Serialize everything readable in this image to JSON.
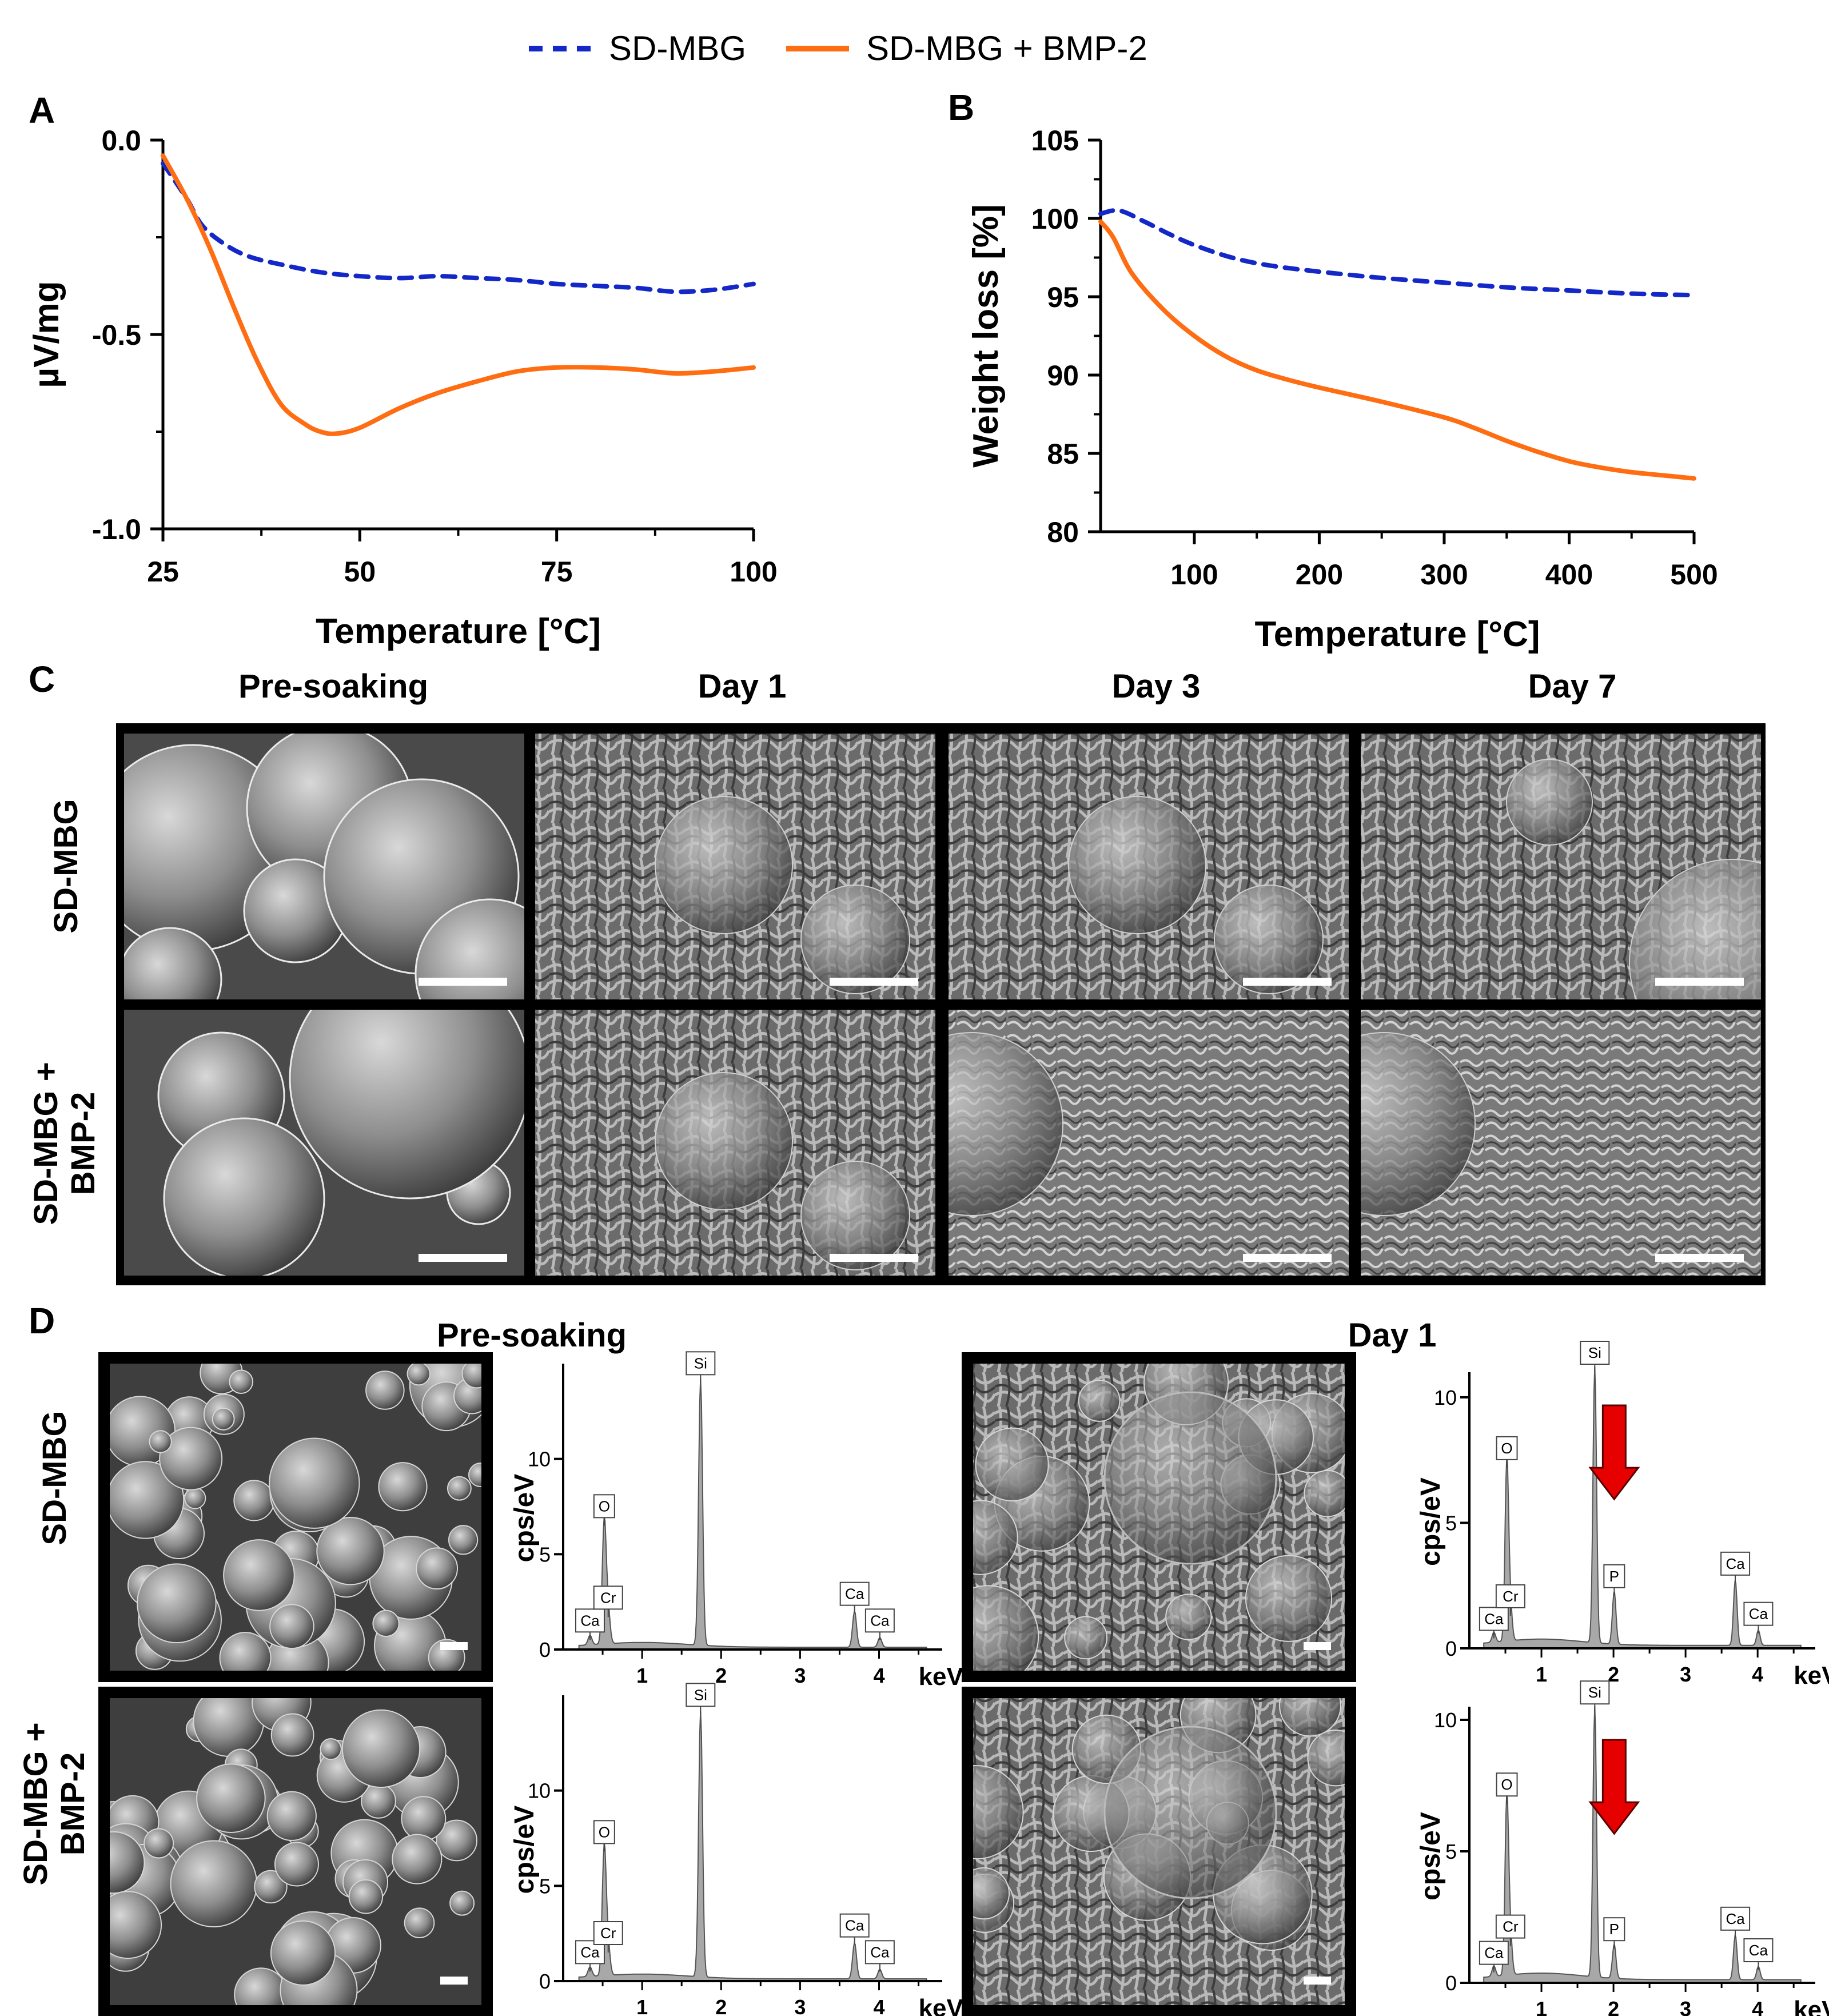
{
  "legend": {
    "series1": "SD-MBG",
    "series2": "SD-MBG + BMP-2"
  },
  "colors": {
    "series1": "#1428c8",
    "series2": "#ff6d12",
    "arrow": "#e60000",
    "spectrum": "#a8a8a8",
    "sem_frame": "#000000"
  },
  "panel_labels": {
    "a": "A",
    "b": "B",
    "c": "C",
    "d": "D"
  },
  "panel_c": {
    "columns": [
      "Pre-soaking",
      "Day 1",
      "Day 3",
      "Day 7"
    ],
    "rows": [
      {
        "label": "SD-MBG"
      },
      {
        "label_line1": "SD-MBG +",
        "label_line2": "BMP-2"
      }
    ]
  },
  "panel_d": {
    "groups": [
      "Pre-soaking",
      "Day 1"
    ],
    "rows": [
      {
        "label": "SD-MBG"
      },
      {
        "label_line1": "SD-MBG +",
        "label_line2": "BMP-2"
      }
    ]
  },
  "chart_data": [
    {
      "id": "A",
      "type": "line",
      "title": "",
      "xlabel": "Temperature [°C]",
      "ylabel": "µV/mg",
      "xlim": [
        25,
        100
      ],
      "ylim": [
        -1.0,
        0.0
      ],
      "xticks": [
        25,
        50,
        75,
        100
      ],
      "xtick_labels": [
        "25",
        "50",
        "75",
        "100"
      ],
      "yticks": [
        -1.0,
        -0.5,
        0.0
      ],
      "ytick_labels": [
        "-1.0",
        "-0.5",
        "0.0"
      ],
      "legend_position": "top-center",
      "series": [
        {
          "name": "SD-MBG",
          "style": "dashed",
          "x": [
            25,
            28,
            30,
            33,
            36,
            40,
            45,
            50,
            55,
            60,
            65,
            70,
            75,
            80,
            85,
            90,
            95,
            100
          ],
          "y": [
            -0.06,
            -0.15,
            -0.22,
            -0.27,
            -0.3,
            -0.32,
            -0.34,
            -0.35,
            -0.355,
            -0.35,
            -0.355,
            -0.36,
            -0.37,
            -0.375,
            -0.38,
            -0.39,
            -0.385,
            -0.37
          ]
        },
        {
          "name": "SD-MBG + BMP-2",
          "style": "solid",
          "x": [
            25,
            28,
            31,
            34,
            37,
            40,
            43,
            45,
            47,
            50,
            55,
            60,
            65,
            70,
            75,
            80,
            85,
            90,
            95,
            100
          ],
          "y": [
            -0.04,
            -0.15,
            -0.28,
            -0.43,
            -0.57,
            -0.68,
            -0.73,
            -0.75,
            -0.755,
            -0.74,
            -0.69,
            -0.65,
            -0.62,
            -0.595,
            -0.585,
            -0.585,
            -0.59,
            -0.6,
            -0.595,
            -0.585
          ]
        }
      ]
    },
    {
      "id": "B",
      "type": "line",
      "title": "",
      "xlabel": "Temperature [°C]",
      "ylabel": "Weight loss [%]",
      "xlim": [
        25,
        500
      ],
      "ylim": [
        80,
        105
      ],
      "xticks": [
        100,
        200,
        300,
        400,
        500
      ],
      "xtick_labels": [
        "100",
        "200",
        "300",
        "400",
        "500"
      ],
      "yticks": [
        80,
        85,
        90,
        95,
        100,
        105
      ],
      "ytick_labels": [
        "80",
        "85",
        "90",
        "95",
        "100",
        "105"
      ],
      "series": [
        {
          "name": "SD-MBG",
          "style": "dashed",
          "x": [
            25,
            40,
            60,
            80,
            100,
            130,
            160,
            200,
            250,
            300,
            350,
            400,
            450,
            500
          ],
          "y": [
            100.3,
            100.5,
            99.8,
            99,
            98.3,
            97.5,
            97,
            96.6,
            96.2,
            95.9,
            95.6,
            95.4,
            95.2,
            95.1
          ]
        },
        {
          "name": "SD-MBG + BMP-2",
          "style": "solid",
          "x": [
            25,
            35,
            50,
            75,
            100,
            125,
            150,
            175,
            200,
            250,
            300,
            325,
            350,
            375,
            400,
            425,
            450,
            475,
            500
          ],
          "y": [
            99.8,
            98.8,
            96.5,
            94.2,
            92.5,
            91.2,
            90.3,
            89.7,
            89.2,
            88.3,
            87.3,
            86.6,
            85.8,
            85.1,
            84.5,
            84.1,
            83.8,
            83.6,
            83.4
          ]
        }
      ]
    },
    {
      "id": "D-presoak-SD-MBG",
      "type": "area",
      "xlabel": "keV",
      "ylabel": "cps/eV",
      "xlim": [
        0,
        4.8
      ],
      "ylim": [
        0,
        15
      ],
      "xticks": [
        1,
        2,
        3,
        4
      ],
      "xtick_labels": [
        "1",
        "2",
        "3",
        "4"
      ],
      "yticks": [
        0,
        5,
        10
      ],
      "ytick_labels": [
        "0",
        "5",
        "10"
      ],
      "peaks": [
        {
          "element": "Ca",
          "x": 0.34,
          "y": 0.5
        },
        {
          "element": "O",
          "x": 0.52,
          "y": 6.5
        },
        {
          "element": "Cr",
          "x": 0.57,
          "y": 1.7
        },
        {
          "element": "Si",
          "x": 1.74,
          "y": 14
        },
        {
          "element": "Ca",
          "x": 3.69,
          "y": 1.9
        },
        {
          "element": "Ca",
          "x": 4.01,
          "y": 0.5
        }
      ]
    },
    {
      "id": "D-presoak-SD-MBG+BMP-2",
      "type": "area",
      "xlabel": "keV",
      "ylabel": "cps/eV",
      "xlim": [
        0,
        4.8
      ],
      "ylim": [
        0,
        15
      ],
      "xticks": [
        1,
        2,
        3,
        4
      ],
      "xtick_labels": [
        "1",
        "2",
        "3",
        "4"
      ],
      "yticks": [
        0,
        5,
        10
      ],
      "ytick_labels": [
        "0",
        "5",
        "10"
      ],
      "peaks": [
        {
          "element": "Ca",
          "x": 0.34,
          "y": 0.5
        },
        {
          "element": "O",
          "x": 0.52,
          "y": 6.8
        },
        {
          "element": "Cr",
          "x": 0.57,
          "y": 1.5
        },
        {
          "element": "Si",
          "x": 1.74,
          "y": 14
        },
        {
          "element": "Ca",
          "x": 3.69,
          "y": 1.9
        },
        {
          "element": "Ca",
          "x": 4.01,
          "y": 0.5
        }
      ]
    },
    {
      "id": "D-day1-SD-MBG",
      "type": "area",
      "xlabel": "keV",
      "ylabel": "cps/eV",
      "xlim": [
        0,
        4.8
      ],
      "ylim": [
        0,
        11
      ],
      "xticks": [
        1,
        2,
        3,
        4
      ],
      "xtick_labels": [
        "1",
        "2",
        "3",
        "4"
      ],
      "yticks": [
        0,
        5,
        10
      ],
      "ytick_labels": [
        "0",
        "5",
        "10"
      ],
      "peaks": [
        {
          "element": "Ca",
          "x": 0.34,
          "y": 0.4
        },
        {
          "element": "O",
          "x": 0.52,
          "y": 7.2
        },
        {
          "element": "Cr",
          "x": 0.57,
          "y": 1.3
        },
        {
          "element": "Si",
          "x": 1.74,
          "y": 11
        },
        {
          "element": "P",
          "x": 2.01,
          "y": 2.1
        },
        {
          "element": "Ca",
          "x": 3.69,
          "y": 2.6
        },
        {
          "element": "Ca",
          "x": 4.01,
          "y": 0.6
        }
      ],
      "arrow_at_keV": 2.01
    },
    {
      "id": "D-day1-SD-MBG+BMP-2",
      "type": "area",
      "xlabel": "keV",
      "ylabel": "cps/eV",
      "xlim": [
        0,
        4.8
      ],
      "ylim": [
        0,
        10.5
      ],
      "xticks": [
        1,
        2,
        3,
        4
      ],
      "xtick_labels": [
        "1",
        "2",
        "3",
        "4"
      ],
      "yticks": [
        0,
        5,
        10
      ],
      "ytick_labels": [
        "0",
        "5",
        "10"
      ],
      "peaks": [
        {
          "element": "Ca",
          "x": 0.34,
          "y": 0.4
        },
        {
          "element": "O",
          "x": 0.52,
          "y": 6.8
        },
        {
          "element": "Cr",
          "x": 0.57,
          "y": 1.4
        },
        {
          "element": "Si",
          "x": 1.74,
          "y": 10.3
        },
        {
          "element": "P",
          "x": 2.01,
          "y": 1.3
        },
        {
          "element": "Ca",
          "x": 3.69,
          "y": 1.7
        },
        {
          "element": "Ca",
          "x": 4.01,
          "y": 0.5
        }
      ],
      "arrow_at_keV": 2.01
    }
  ]
}
